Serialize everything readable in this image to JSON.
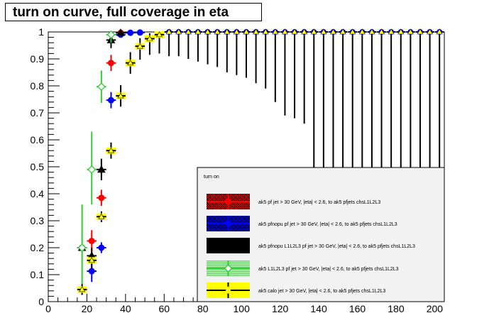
{
  "canvas_title": "turn on curve, full coverage in eta",
  "chart_data": {
    "type": "scatter",
    "title": "turn on curve, full coverage in eta",
    "xlabel": "",
    "ylabel": "",
    "xlim": [
      0,
      205
    ],
    "ylim": [
      0,
      1.0
    ],
    "x_ticks": [
      0,
      20,
      40,
      60,
      80,
      100,
      120,
      140,
      160,
      180,
      200
    ],
    "y_ticks": [
      0,
      0.1,
      0.2,
      0.3,
      0.4,
      0.5,
      0.6,
      0.7,
      0.8,
      0.9,
      1
    ],
    "grid": false,
    "legend_placement": "bottom-right",
    "legend_header": "turn on",
    "high_pt_points": {
      "x": [
        62.5,
        67.5,
        72.5,
        77.5,
        82.5,
        87.5,
        92.5,
        97.5,
        102.5,
        107.5,
        112.5,
        117.5,
        122.5,
        127.5,
        132.5,
        137.5,
        142.5,
        147.5,
        152.5,
        157.5,
        162.5,
        167.5,
        172.5,
        177.5,
        182.5,
        187.5,
        192.5,
        197.5,
        202.5
      ],
      "y": [
        1,
        1,
        1,
        1,
        1,
        1,
        1,
        1,
        1,
        1,
        1,
        1,
        1,
        1,
        1,
        1,
        1,
        1,
        1,
        1,
        1,
        1,
        1,
        1,
        1,
        1,
        1,
        1,
        1
      ],
      "err_low_black": [
        0.09,
        0.09,
        0.1,
        0.11,
        0.12,
        0.13,
        0.15,
        0.16,
        0.17,
        0.19,
        0.21,
        0.26,
        0.31,
        0.32,
        0.34,
        0.6,
        0.6,
        0.6,
        0.6,
        0.6,
        0.6,
        0.6,
        0.6,
        0.6,
        0.6,
        0.6,
        0.6,
        0.6,
        0.6
      ]
    },
    "series": [
      {
        "name": "ak5 pf jet > 30 GeV, |eta| < 2.6, to ak5 pfjets chsL1L2L3",
        "color": "#ff0000",
        "marker": "filled-circle",
        "points": [
          {
            "x": 22.5,
            "y": 0.225,
            "el": 0.04,
            "eh": 0.04
          },
          {
            "x": 27.5,
            "y": 0.385,
            "el": 0.03,
            "eh": 0.03
          },
          {
            "x": 32.5,
            "y": 0.885,
            "el": 0.03,
            "eh": 0.03
          },
          {
            "x": 37.5,
            "y": 0.997,
            "el": 0.01,
            "eh": 0.003
          }
        ]
      },
      {
        "name": "ak5 pfnopu pf jet > 30 GeV, |eta| < 2.6, to ak5 pfjets chsL1L2L3",
        "color": "#0000ff",
        "marker": "filled-circle",
        "points": [
          {
            "x": 17.5,
            "y": 0.2,
            "el": 0.01,
            "eh": 0.01
          },
          {
            "x": 22.5,
            "y": 0.113,
            "el": 0.04,
            "eh": 0.04
          },
          {
            "x": 27.5,
            "y": 0.2,
            "el": 0.02,
            "eh": 0.02
          },
          {
            "x": 32.5,
            "y": 0.747,
            "el": 0.03,
            "eh": 0.03
          },
          {
            "x": 37.5,
            "y": 0.99,
            "el": 0.01,
            "eh": 0.01
          },
          {
            "x": 42.5,
            "y": 0.997,
            "el": 0.01,
            "eh": 0.003
          },
          {
            "x": 47.5,
            "y": 0.998,
            "el": 0.01,
            "eh": 0.002
          }
        ]
      },
      {
        "name": "ak5 pfnopu L1L2L3 pf jet > 30 GeV, |eta| < 2.6, to ak5 pfjets chsL1L2L3",
        "color": "#000000",
        "marker": "triangle",
        "points": [
          {
            "x": 17.5,
            "y": 0.2,
            "el": 0.01,
            "eh": 0.01
          },
          {
            "x": 22.5,
            "y": 0.17,
            "el": 0.03,
            "eh": 0.03
          },
          {
            "x": 27.5,
            "y": 0.49,
            "el": 0.04,
            "eh": 0.04
          },
          {
            "x": 32.5,
            "y": 0.97,
            "el": 0.03,
            "eh": 0.02
          },
          {
            "x": 37.5,
            "y": 0.997,
            "el": 0.01,
            "eh": 0.003
          }
        ]
      },
      {
        "name": "ak5  L1L2L3 pf jet > 30 GeV, |eta| < 2.6, to ak5 pfjets chsL1L2L3",
        "color": "#33cc33",
        "marker": "open-diamond",
        "points": [
          {
            "x": 17.5,
            "y": 0.2,
            "el": 0.16,
            "eh": 0.16
          },
          {
            "x": 22.5,
            "y": 0.49,
            "el": 0.13,
            "eh": 0.14
          },
          {
            "x": 27.5,
            "y": 0.797,
            "el": 0.06,
            "eh": 0.06
          },
          {
            "x": 32.5,
            "y": 0.99,
            "el": 0.03,
            "eh": 0.01
          }
        ]
      },
      {
        "name": "ak5 calo jet > 30 GeV, |eta| < 2.6, to ak5 pfjets chsL1L2L3",
        "color": "#ffff00",
        "marker": "triangle",
        "points": [
          {
            "x": 17.5,
            "y": 0.045,
            "el": 0.02,
            "eh": 0.02
          },
          {
            "x": 22.5,
            "y": 0.153,
            "el": 0.03,
            "eh": 0.03
          },
          {
            "x": 27.5,
            "y": 0.315,
            "el": 0.02,
            "eh": 0.02
          },
          {
            "x": 32.5,
            "y": 0.56,
            "el": 0.03,
            "eh": 0.03
          },
          {
            "x": 37.5,
            "y": 0.763,
            "el": 0.04,
            "eh": 0.04
          },
          {
            "x": 42.5,
            "y": 0.885,
            "el": 0.04,
            "eh": 0.04
          },
          {
            "x": 47.5,
            "y": 0.947,
            "el": 0.05,
            "eh": 0.03
          },
          {
            "x": 52.5,
            "y": 0.975,
            "el": 0.06,
            "eh": 0.02
          },
          {
            "x": 57.5,
            "y": 0.99,
            "el": 0.07,
            "eh": 0.01
          }
        ]
      }
    ]
  }
}
